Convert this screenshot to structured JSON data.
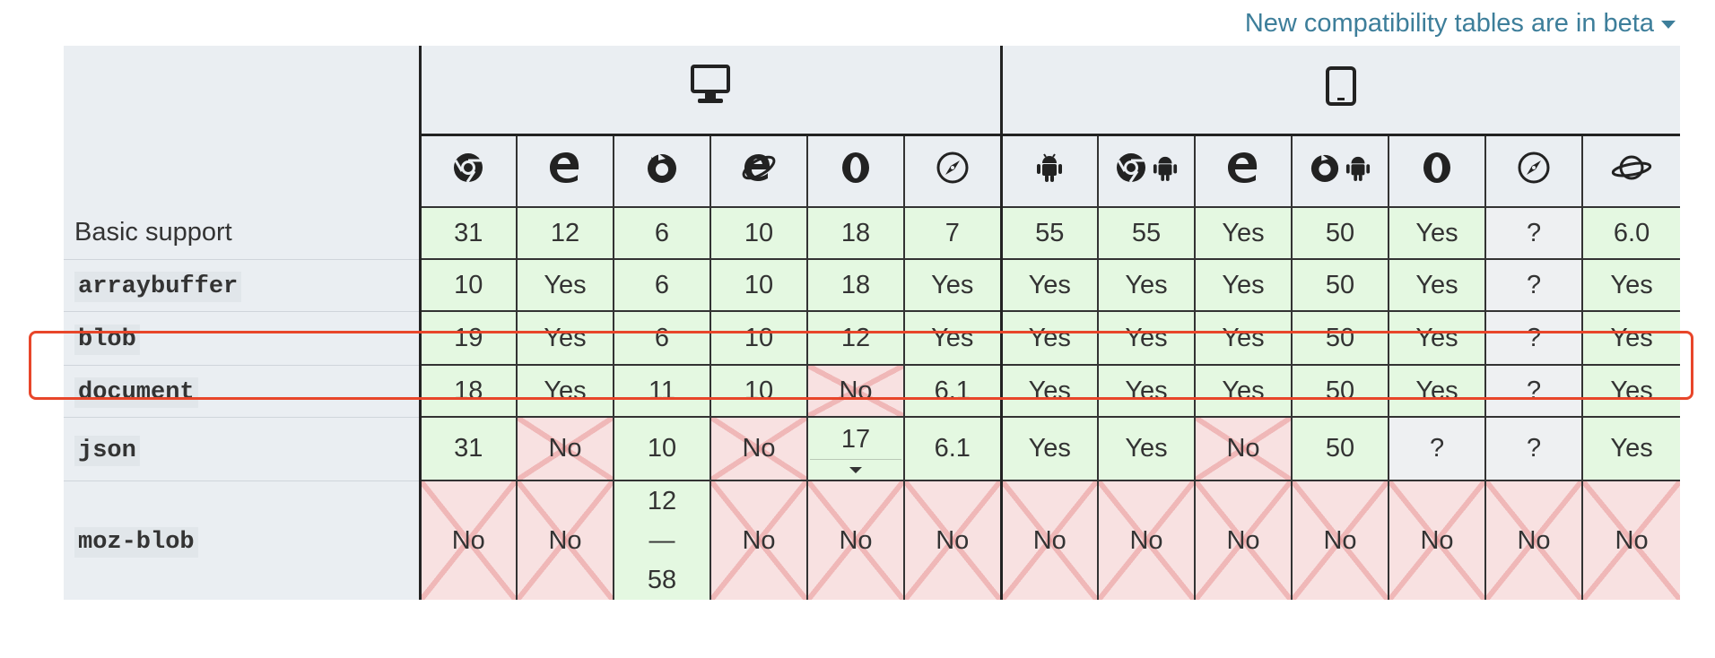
{
  "beta_notice": {
    "label": "New compatibility tables are in beta"
  },
  "platforms": [
    {
      "name": "desktop",
      "icon": "desktop-icon"
    },
    {
      "name": "mobile",
      "icon": "tablet-icon"
    }
  ],
  "browsers": {
    "desktop": [
      {
        "id": "chrome",
        "icon": "chrome-icon"
      },
      {
        "id": "edge",
        "icon": "edge-icon"
      },
      {
        "id": "firefox",
        "icon": "firefox-icon"
      },
      {
        "id": "ie",
        "icon": "internet-explorer-icon"
      },
      {
        "id": "opera",
        "icon": "opera-icon"
      },
      {
        "id": "safari",
        "icon": "safari-icon"
      }
    ],
    "mobile": [
      {
        "id": "webview-android",
        "icon": "android-icon"
      },
      {
        "id": "chrome-android",
        "icon": "chrome-android-icon"
      },
      {
        "id": "edge-mobile",
        "icon": "edge-icon"
      },
      {
        "id": "firefox-android",
        "icon": "firefox-android-icon"
      },
      {
        "id": "opera-android",
        "icon": "opera-icon"
      },
      {
        "id": "safari-ios",
        "icon": "safari-icon"
      },
      {
        "id": "samsung-internet",
        "icon": "samsung-internet-icon"
      }
    ]
  },
  "rows": [
    {
      "feature": "Basic support",
      "code": false,
      "cells": [
        "31",
        "12",
        "6",
        "10",
        "18",
        "7",
        "55",
        "55",
        "Yes",
        "50",
        "Yes",
        "?",
        "6.0"
      ],
      "status": [
        "yes",
        "yes",
        "yes",
        "yes",
        "yes",
        "yes",
        "yes",
        "yes",
        "yes",
        "yes",
        "yes",
        "unknown",
        "yes"
      ]
    },
    {
      "feature": "arraybuffer",
      "code": true,
      "cells": [
        "10",
        "Yes",
        "6",
        "10",
        "18",
        "Yes",
        "Yes",
        "Yes",
        "Yes",
        "50",
        "Yes",
        "?",
        "Yes"
      ],
      "status": [
        "yes",
        "yes",
        "yes",
        "yes",
        "yes",
        "yes",
        "yes",
        "yes",
        "yes",
        "yes",
        "yes",
        "unknown",
        "yes"
      ]
    },
    {
      "feature": "blob",
      "code": true,
      "highlighted": true,
      "cells": [
        "19",
        "Yes",
        "6",
        "10",
        "12",
        "Yes",
        "Yes",
        "Yes",
        "Yes",
        "50",
        "Yes",
        "?",
        "Yes"
      ],
      "status": [
        "yes",
        "yes",
        "yes",
        "yes",
        "yes",
        "yes",
        "yes",
        "yes",
        "yes",
        "yes",
        "yes",
        "unknown",
        "yes"
      ]
    },
    {
      "feature": "document",
      "code": true,
      "cells": [
        "18",
        "Yes",
        "11",
        "10",
        "No",
        "6.1",
        "Yes",
        "Yes",
        "Yes",
        "50",
        "Yes",
        "?",
        "Yes"
      ],
      "status": [
        "yes",
        "yes",
        "yes",
        "yes",
        "no",
        "yes",
        "yes",
        "yes",
        "yes",
        "yes",
        "yes",
        "unknown",
        "yes"
      ]
    },
    {
      "feature": "json",
      "code": true,
      "cells": [
        "31",
        "No",
        "10",
        "No",
        "17",
        "6.1",
        "Yes",
        "Yes",
        "No",
        "50",
        "?",
        "?",
        "Yes"
      ],
      "status": [
        "yes",
        "no",
        "yes",
        "no",
        "yes",
        "yes",
        "yes",
        "yes",
        "no",
        "yes",
        "unknown",
        "unknown",
        "yes"
      ]
    },
    {
      "feature": "moz-blob",
      "code": true,
      "cells": [
        "No",
        "No",
        "12 — 58",
        "No",
        "No",
        "No",
        "No",
        "No",
        "No",
        "No",
        "No",
        "No",
        "No"
      ],
      "status": [
        "no",
        "no",
        "yes",
        "no",
        "no",
        "no",
        "no",
        "no",
        "no",
        "no",
        "no",
        "no",
        "no"
      ]
    }
  ],
  "colors": {
    "yes": "#e4f8e1",
    "no": "#f8e1e1",
    "unknown": "#eef0f2",
    "header": "#eaeef2",
    "link": "#3d7e9a",
    "highlight_border": "#e8462a"
  }
}
